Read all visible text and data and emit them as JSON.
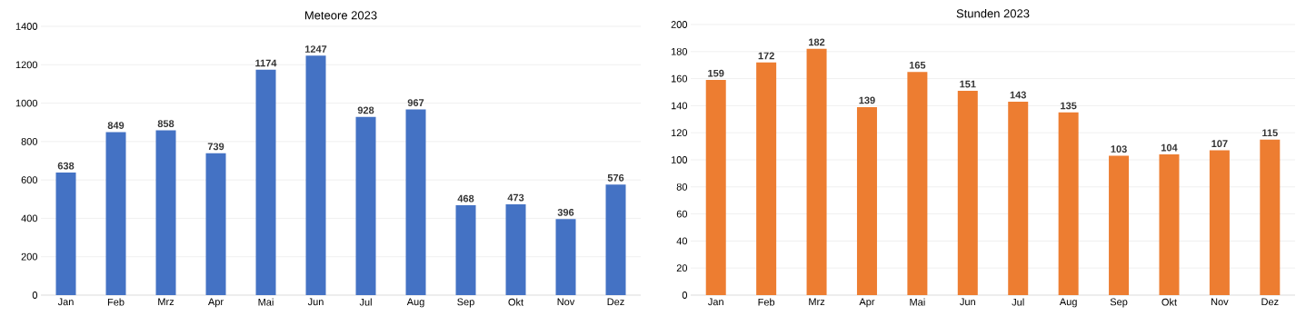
{
  "chart_data": [
    {
      "type": "bar",
      "title": "Meteore 2023",
      "categories": [
        "Jan",
        "Feb",
        "Mrz",
        "Apr",
        "Mai",
        "Jun",
        "Jul",
        "Aug",
        "Sep",
        "Okt",
        "Nov",
        "Dez"
      ],
      "values": [
        638,
        849,
        858,
        739,
        1174,
        1247,
        928,
        967,
        468,
        473,
        396,
        576
      ],
      "color": "#4472c4",
      "ylim": [
        0,
        1400
      ],
      "yticks": [
        0,
        200,
        400,
        600,
        800,
        1000,
        1200,
        1400
      ],
      "grid": "y",
      "data_labels": true
    },
    {
      "type": "bar",
      "title": "Stunden 2023",
      "categories": [
        "Jan",
        "Feb",
        "Mrz",
        "Apr",
        "Mai",
        "Jun",
        "Jul",
        "Aug",
        "Sep",
        "Okt",
        "Nov",
        "Dez"
      ],
      "values": [
        159,
        172,
        182,
        139,
        165,
        151,
        143,
        135,
        103,
        104,
        107,
        115
      ],
      "color": "#ed7d31",
      "ylim": [
        0,
        200
      ],
      "yticks": [
        0,
        20,
        40,
        60,
        80,
        100,
        120,
        140,
        160,
        180,
        200
      ],
      "grid": "y",
      "data_labels": true
    }
  ]
}
